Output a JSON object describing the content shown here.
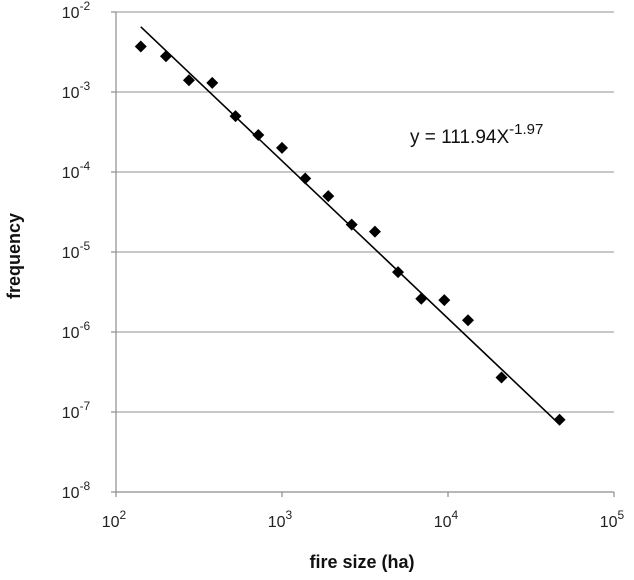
{
  "chart_data": {
    "type": "scatter",
    "title": "",
    "xlabel": "fire size (ha)",
    "ylabel": "frequency",
    "x_scale": "log",
    "y_scale": "log",
    "xlim": [
      100,
      100000
    ],
    "ylim": [
      1e-08,
      0.01
    ],
    "grid": "horizontal major gridlines",
    "legend": "none",
    "x_ticks": [
      {
        "value": 100,
        "base": "10",
        "exp": "2"
      },
      {
        "value": 1000,
        "base": "10",
        "exp": "3"
      },
      {
        "value": 10000,
        "base": "10",
        "exp": "4"
      },
      {
        "value": 100000,
        "base": "10",
        "exp": "5"
      }
    ],
    "y_ticks": [
      {
        "value": 1e-08,
        "base": "10",
        "exp": "-8"
      },
      {
        "value": 1e-07,
        "base": "10",
        "exp": "-7"
      },
      {
        "value": 1e-06,
        "base": "10",
        "exp": "-6"
      },
      {
        "value": 1e-05,
        "base": "10",
        "exp": "-5"
      },
      {
        "value": 0.0001,
        "base": "10",
        "exp": "-4"
      },
      {
        "value": 0.001,
        "base": "10",
        "exp": "-3"
      },
      {
        "value": 0.01,
        "base": "10",
        "exp": "-2"
      }
    ],
    "points": [
      {
        "x": 141,
        "y": 0.0037
      },
      {
        "x": 200,
        "y": 0.0028
      },
      {
        "x": 275,
        "y": 0.0014
      },
      {
        "x": 380,
        "y": 0.0013
      },
      {
        "x": 525,
        "y": 0.0005
      },
      {
        "x": 720,
        "y": 0.00029
      },
      {
        "x": 1000,
        "y": 0.0002
      },
      {
        "x": 1380,
        "y": 8.3e-05
      },
      {
        "x": 1900,
        "y": 5e-05
      },
      {
        "x": 2630,
        "y": 2.2e-05
      },
      {
        "x": 3630,
        "y": 1.8e-05
      },
      {
        "x": 5000,
        "y": 5.6e-06
      },
      {
        "x": 6900,
        "y": 2.6e-06
      },
      {
        "x": 9500,
        "y": 2.5e-06
      },
      {
        "x": 13200,
        "y": 1.4e-06
      },
      {
        "x": 21000,
        "y": 2.7e-07
      },
      {
        "x": 47000,
        "y": 8e-08
      }
    ],
    "trendline": {
      "coefficient": 111.94,
      "exponent": -1.97,
      "x_range": [
        141,
        47000
      ]
    },
    "annotation": {
      "prefix": "y = 111.94X",
      "superscript": "-1.97"
    },
    "colors": {
      "marker": "#000000",
      "trendline": "#000000",
      "grid": "#a6a6a6",
      "axis": "#8c8c8c"
    }
  }
}
